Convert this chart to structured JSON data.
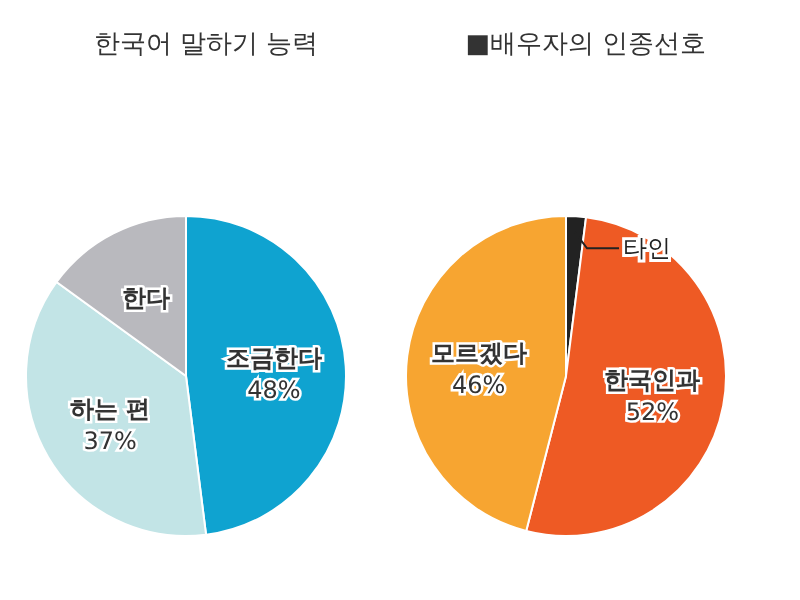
{
  "chart_data": [
    {
      "type": "pie",
      "title": "한국어 말하기 능력",
      "categories": [
        "조금한다",
        "하는 편",
        "한다"
      ],
      "values": [
        48,
        37,
        15
      ],
      "colors": [
        "#0fa3d0",
        "#c2e4e6",
        "#b9b9be"
      ],
      "value_labels": [
        "48%",
        "37%",
        null
      ]
    },
    {
      "type": "pie",
      "title": "■배우자의 인종선호",
      "categories": [
        "타인",
        "한국인과",
        "모르겠다"
      ],
      "values": [
        2,
        52,
        46
      ],
      "colors": [
        "#222222",
        "#ee5a24",
        "#f7a531"
      ],
      "value_labels": [
        null,
        "52%",
        "46%"
      ]
    }
  ]
}
